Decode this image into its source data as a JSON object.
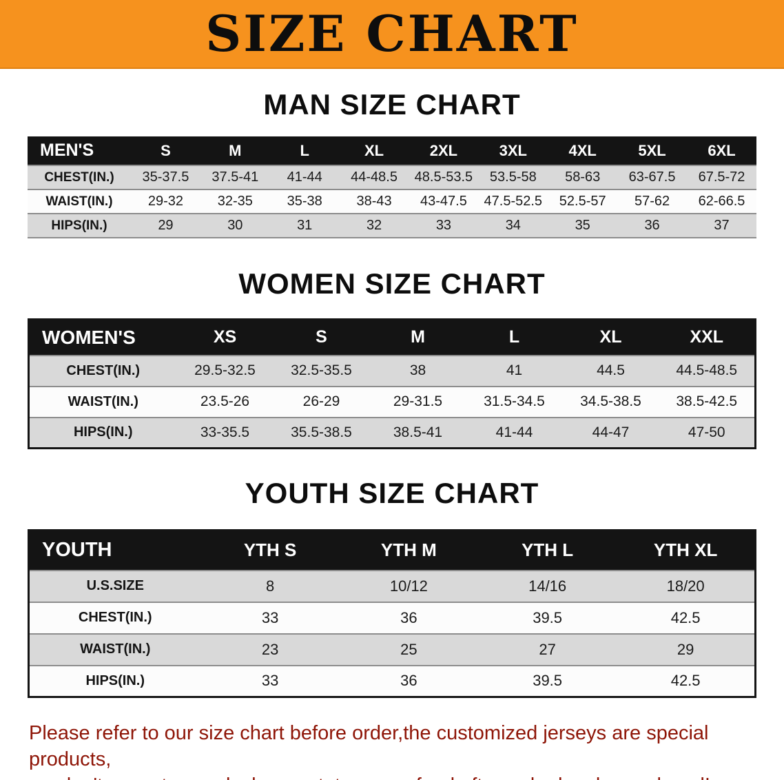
{
  "banner": {
    "title": "SIZE CHART"
  },
  "colors": {
    "banner_bg": "#f6921e",
    "table_header_bg": "#141414",
    "row_stripe": "#d9d9d9",
    "disclaimer_text": "#8e1507"
  },
  "sections": [
    {
      "heading": "MAN SIZE CHART",
      "table": {
        "header": [
          "MEN'S",
          "S",
          "M",
          "L",
          "XL",
          "2XL",
          "3XL",
          "4XL",
          "5XL",
          "6XL"
        ],
        "rows": [
          [
            "CHEST(IN.)",
            "35-37.5",
            "37.5-41",
            "41-44",
            "44-48.5",
            "48.5-53.5",
            "53.5-58",
            "58-63",
            "63-67.5",
            "67.5-72"
          ],
          [
            "WAIST(IN.)",
            "29-32",
            "32-35",
            "35-38",
            "38-43",
            "43-47.5",
            "47.5-52.5",
            "52.5-57",
            "57-62",
            "62-66.5"
          ],
          [
            "HIPS(IN.)",
            "29",
            "30",
            "31",
            "32",
            "33",
            "34",
            "35",
            "36",
            "37"
          ]
        ]
      }
    },
    {
      "heading": "WOMEN SIZE CHART",
      "table": {
        "header": [
          "WOMEN'S",
          "XS",
          "S",
          "M",
          "L",
          "XL",
          "XXL"
        ],
        "rows": [
          [
            "CHEST(IN.)",
            "29.5-32.5",
            "32.5-35.5",
            "38",
            "41",
            "44.5",
            "44.5-48.5"
          ],
          [
            "WAIST(IN.)",
            "23.5-26",
            "26-29",
            "29-31.5",
            "31.5-34.5",
            "34.5-38.5",
            "38.5-42.5"
          ],
          [
            "HIPS(IN.)",
            "33-35.5",
            "35.5-38.5",
            "38.5-41",
            "41-44",
            "44-47",
            "47-50"
          ]
        ]
      }
    },
    {
      "heading": "YOUTH SIZE CHART",
      "table": {
        "header": [
          "YOUTH",
          "YTH S",
          "YTH M",
          "YTH L",
          "YTH XL"
        ],
        "rows": [
          [
            "U.S.SIZE",
            "8",
            "10/12",
            "14/16",
            "18/20"
          ],
          [
            "CHEST(IN.)",
            "33",
            "36",
            "39.5",
            "42.5"
          ],
          [
            "WAIST(IN.)",
            "23",
            "25",
            "27",
            "29"
          ],
          [
            "HIPS(IN.)",
            "33",
            "36",
            "39.5",
            "42.5"
          ]
        ]
      }
    }
  ],
  "footer": {
    "line1": "Please refer to our size chart before order,the customized jerseys are special products,",
    "line2": "we don't accept cancel, change, teturn or refund after order has been placed!"
  }
}
